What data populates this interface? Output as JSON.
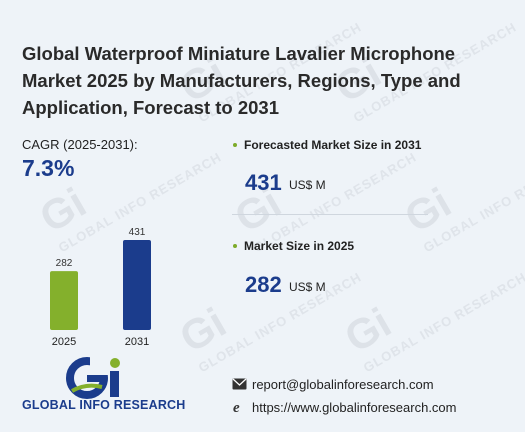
{
  "title": "Global Waterproof Miniature Lavalier Microphone Market 2025 by Manufacturers, Regions, Type and Application, Forecast to 2031",
  "cagr": {
    "label": "CAGR (2025-2031):",
    "value": "7.3%"
  },
  "forecast": {
    "label": "Forecasted Market Size in 2031",
    "value": "431",
    "unit": "US$ M"
  },
  "current": {
    "label": "Market Size in 2025",
    "value": "282",
    "unit": "US$ M"
  },
  "chart_data": {
    "type": "bar",
    "categories": [
      "2025",
      "2031"
    ],
    "values": [
      282,
      431
    ],
    "colors": [
      "#84b02c",
      "#1b3c8c"
    ],
    "title": "",
    "xlabel": "",
    "ylabel": "",
    "ylim": [
      0,
      431
    ],
    "grid": false
  },
  "logo": {
    "text": "GLOBAL INFO RESEARCH",
    "mark": "Gi"
  },
  "contact": {
    "email": "report@globalinforesearch.com",
    "website": "https://www.globalinforesearch.com"
  },
  "colors": {
    "accent": "#1b3c8c",
    "green": "#84b02c",
    "background": "#eef3f8"
  }
}
